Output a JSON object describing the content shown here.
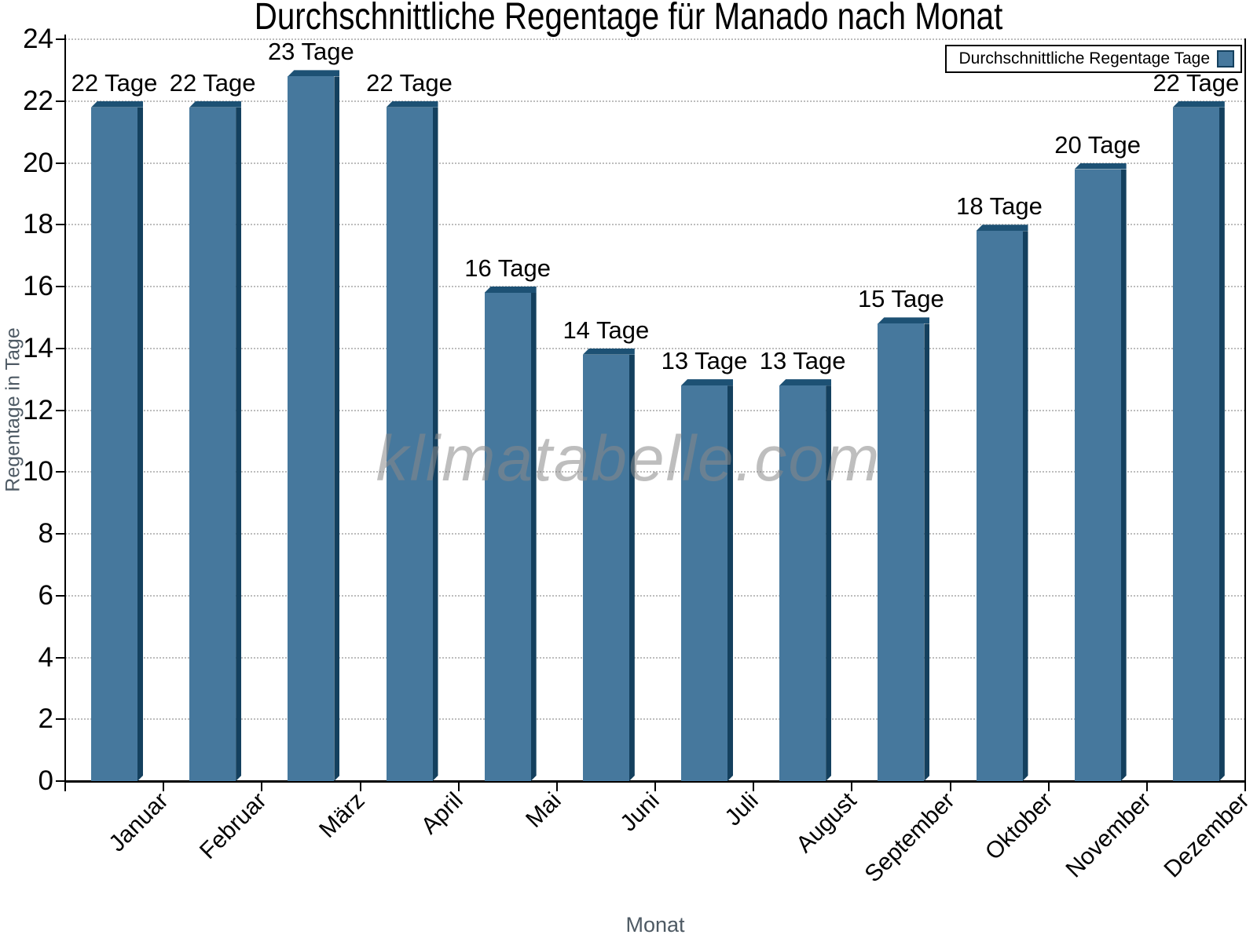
{
  "title": "Durchschnittliche Regentage für Manado nach Monat",
  "watermark": "klimatabelle.com",
  "legend": {
    "label": "Durchschnittliche Regentage Tage",
    "position": "top-right"
  },
  "chart_data": {
    "type": "bar",
    "title": "Durchschnittliche Regentage für Manado nach Monat",
    "categories": [
      "Januar",
      "Februar",
      "März",
      "April",
      "Mai",
      "Juni",
      "Juli",
      "August",
      "September",
      "Oktober",
      "November",
      "Dezember"
    ],
    "values": [
      22,
      22,
      23,
      22,
      16,
      14,
      13,
      13,
      15,
      18,
      20,
      22
    ],
    "bar_labels": [
      "22 Tage",
      "22 Tage",
      "23 Tage",
      "22 Tage",
      "16 Tage",
      "14 Tage",
      "13 Tage",
      "13 Tage",
      "15 Tage",
      "18 Tage",
      "20 Tage",
      "22 Tage"
    ],
    "value_label_suffix": " Tage",
    "xlabel": "Monat",
    "ylabel": "Regentage in Tage",
    "ylim": [
      0,
      24
    ],
    "ytick_step": 2,
    "ytick_labels": [
      "0",
      "2",
      "4",
      "6",
      "8",
      "10",
      "12",
      "14",
      "16",
      "18",
      "20",
      "22",
      "24"
    ],
    "grid": "horizontal-dotted",
    "legend_entries": [
      "Durchschnittliche Regentage Tage"
    ],
    "colors": {
      "bar_face": "#46789D",
      "bar_side": "#14405E",
      "bar_top": "#1D5174",
      "grid": "#bdbdbd",
      "axis": "#000000",
      "axis_title": "#4e5a64",
      "watermark": "#8a8a8a",
      "background": "#ffffff"
    }
  }
}
